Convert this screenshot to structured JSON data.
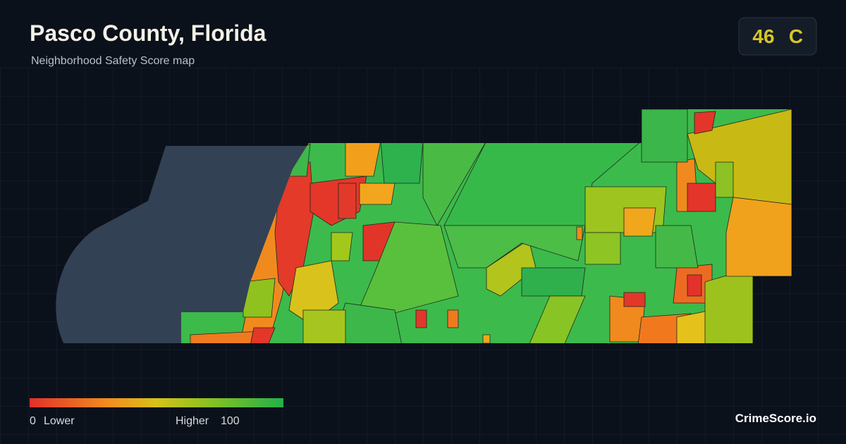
{
  "header": {
    "title": "Pasco County, Florida",
    "subtitle": "Neighborhood Safety Score map"
  },
  "score": {
    "value": 46,
    "grade": "C"
  },
  "legend": {
    "min": 0,
    "min_label": "Lower",
    "max_label": "Higher",
    "max": 100
  },
  "brand": "CrimeScore.io"
}
